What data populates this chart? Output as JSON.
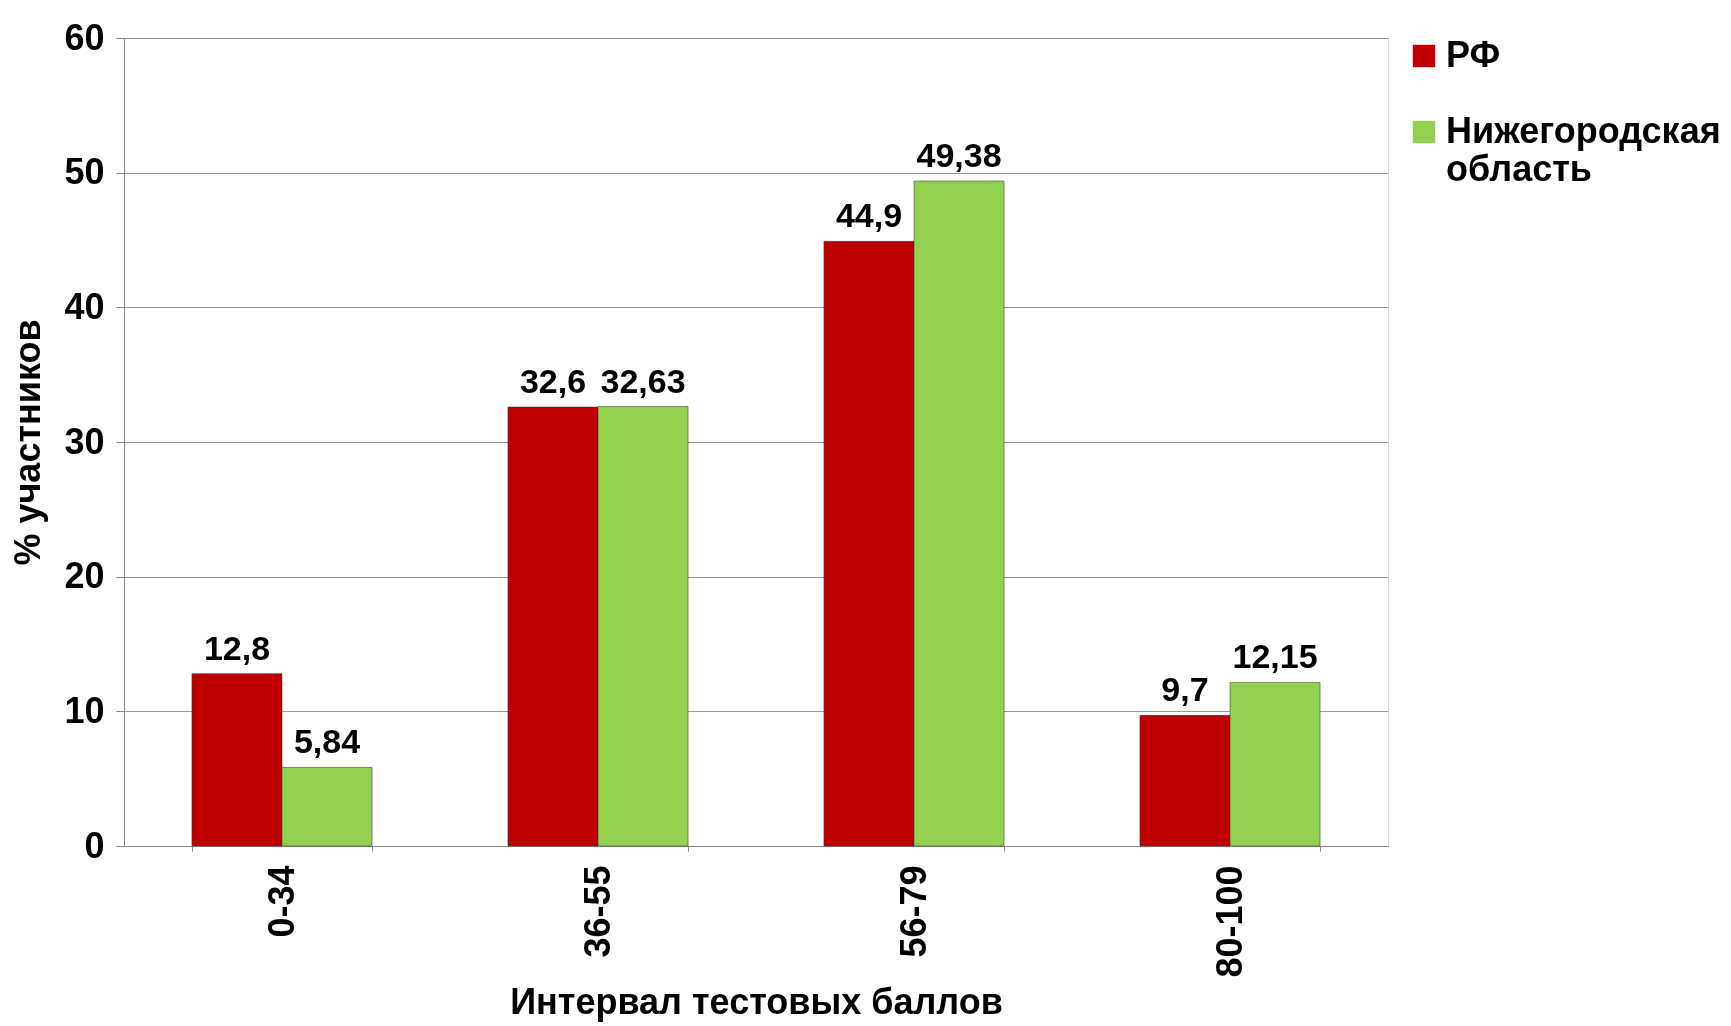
{
  "chart_data": {
    "type": "bar",
    "xlabel": "Интервал тестовых баллов",
    "ylabel": "% участников",
    "categories": [
      "0-34",
      "36-55",
      "56-79",
      "80-100"
    ],
    "series": [
      {
        "name": "РФ",
        "color": "#c00000",
        "values": [
          12.8,
          32.6,
          44.9,
          9.7
        ],
        "value_labels": [
          "12,8",
          "32,6",
          "44,9",
          "9,7"
        ]
      },
      {
        "name": "Нижегородская область",
        "color": "#92d050",
        "values": [
          5.84,
          32.63,
          49.38,
          12.15
        ],
        "value_labels": [
          "5,84",
          "32,63",
          "49,38",
          "12,15"
        ]
      }
    ],
    "ylim": [
      0,
      60
    ],
    "yticks": [
      0,
      10,
      20,
      30,
      40,
      50,
      60
    ],
    "grid": "y",
    "legend": "right"
  }
}
